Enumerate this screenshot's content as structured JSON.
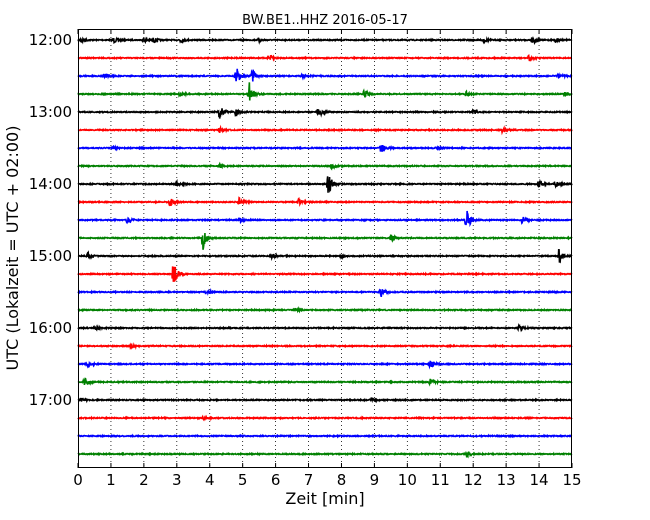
{
  "chart_data": {
    "type": "line",
    "title": "BW.BE1..HHZ 2016-05-17",
    "xlabel": "Zeit  [min]",
    "ylabel": "UTC (Lokalzeit = UTC + 02:00)",
    "xlim": [
      0,
      15
    ],
    "x_ticks": [
      "0",
      "1",
      "2",
      "3",
      "4",
      "5",
      "6",
      "7",
      "8",
      "9",
      "10",
      "11",
      "12",
      "13",
      "14",
      "15"
    ],
    "y_tick_labels": [
      "12:00",
      "13:00",
      "14:00",
      "15:00",
      "16:00",
      "17:00"
    ],
    "grid": "vertical dotted",
    "row_colors": [
      "#000000",
      "#ff0000",
      "#0000ff",
      "#008000"
    ],
    "series": [
      {
        "start": "12:00",
        "events": [
          [
            0.1,
            0.35
          ],
          [
            1.1,
            0.3
          ],
          [
            2.0,
            0.3
          ],
          [
            2.3,
            0.3
          ],
          [
            3.1,
            0.4
          ],
          [
            5.5,
            0.3
          ],
          [
            12.3,
            0.3
          ],
          [
            13.8,
            0.45
          ],
          [
            14.5,
            0.35
          ]
        ]
      },
      {
        "start": "12:15",
        "events": [
          [
            5.8,
            0.45
          ],
          [
            13.7,
            0.35
          ]
        ]
      },
      {
        "start": "12:30",
        "events": [
          [
            0.8,
            0.3
          ],
          [
            4.8,
            1.3
          ],
          [
            5.3,
            0.8
          ],
          [
            6.8,
            0.3
          ],
          [
            14.6,
            0.4
          ]
        ]
      },
      {
        "start": "12:45",
        "events": [
          [
            3.1,
            0.3
          ],
          [
            5.2,
            1.5
          ],
          [
            8.7,
            0.5
          ],
          [
            11.8,
            0.35
          ],
          [
            14.8,
            0.3
          ]
        ]
      },
      {
        "start": "13:00",
        "events": [
          [
            4.3,
            0.8
          ],
          [
            4.8,
            0.5
          ],
          [
            7.3,
            0.6
          ],
          [
            12.0,
            0.3
          ]
        ]
      },
      {
        "start": "13:15",
        "events": [
          [
            4.3,
            0.3
          ],
          [
            12.9,
            0.35
          ]
        ]
      },
      {
        "start": "13:30",
        "events": [
          [
            1.1,
            0.3
          ],
          [
            9.2,
            0.55
          ],
          [
            10.9,
            0.3
          ]
        ]
      },
      {
        "start": "13:45",
        "events": [
          [
            4.3,
            0.3
          ],
          [
            7.7,
            0.3
          ]
        ]
      },
      {
        "start": "14:00",
        "events": [
          [
            3.0,
            0.3
          ],
          [
            7.6,
            1.4
          ],
          [
            14.0,
            0.35
          ],
          [
            14.5,
            0.45
          ]
        ]
      },
      {
        "start": "14:15",
        "events": [
          [
            2.8,
            0.5
          ],
          [
            4.9,
            0.5
          ],
          [
            6.7,
            0.4
          ]
        ]
      },
      {
        "start": "14:30",
        "events": [
          [
            1.5,
            0.4
          ],
          [
            4.9,
            0.3
          ],
          [
            11.8,
            1.6
          ],
          [
            13.5,
            0.5
          ]
        ]
      },
      {
        "start": "14:45",
        "events": [
          [
            3.8,
            1.6
          ],
          [
            9.5,
            0.4
          ]
        ]
      },
      {
        "start": "15:00",
        "events": [
          [
            0.3,
            0.4
          ],
          [
            5.9,
            0.3
          ],
          [
            8.0,
            0.3
          ],
          [
            14.6,
            0.85
          ]
        ]
      },
      {
        "start": "15:15",
        "events": [
          [
            2.9,
            1.5
          ]
        ]
      },
      {
        "start": "15:30",
        "events": [
          [
            3.9,
            0.3
          ],
          [
            9.2,
            0.55
          ]
        ]
      },
      {
        "start": "15:45",
        "events": [
          [
            6.6,
            0.3
          ]
        ]
      },
      {
        "start": "16:00",
        "events": [
          [
            0.5,
            0.25
          ],
          [
            13.4,
            0.3
          ]
        ]
      },
      {
        "start": "16:15",
        "events": [
          [
            1.6,
            0.2
          ]
        ]
      },
      {
        "start": "16:30",
        "events": [
          [
            0.3,
            0.4
          ],
          [
            10.7,
            0.45
          ]
        ]
      },
      {
        "start": "16:45",
        "events": [
          [
            0.2,
            0.5
          ],
          [
            10.7,
            0.45
          ]
        ]
      },
      {
        "start": "17:00",
        "events": [
          [
            0.1,
            0.3
          ],
          [
            8.9,
            0.25
          ]
        ]
      },
      {
        "start": "17:15",
        "events": [
          [
            3.8,
            0.25
          ]
        ]
      },
      {
        "start": "17:30",
        "events": []
      },
      {
        "start": "17:45",
        "events": [
          [
            11.8,
            0.35
          ]
        ]
      }
    ]
  }
}
